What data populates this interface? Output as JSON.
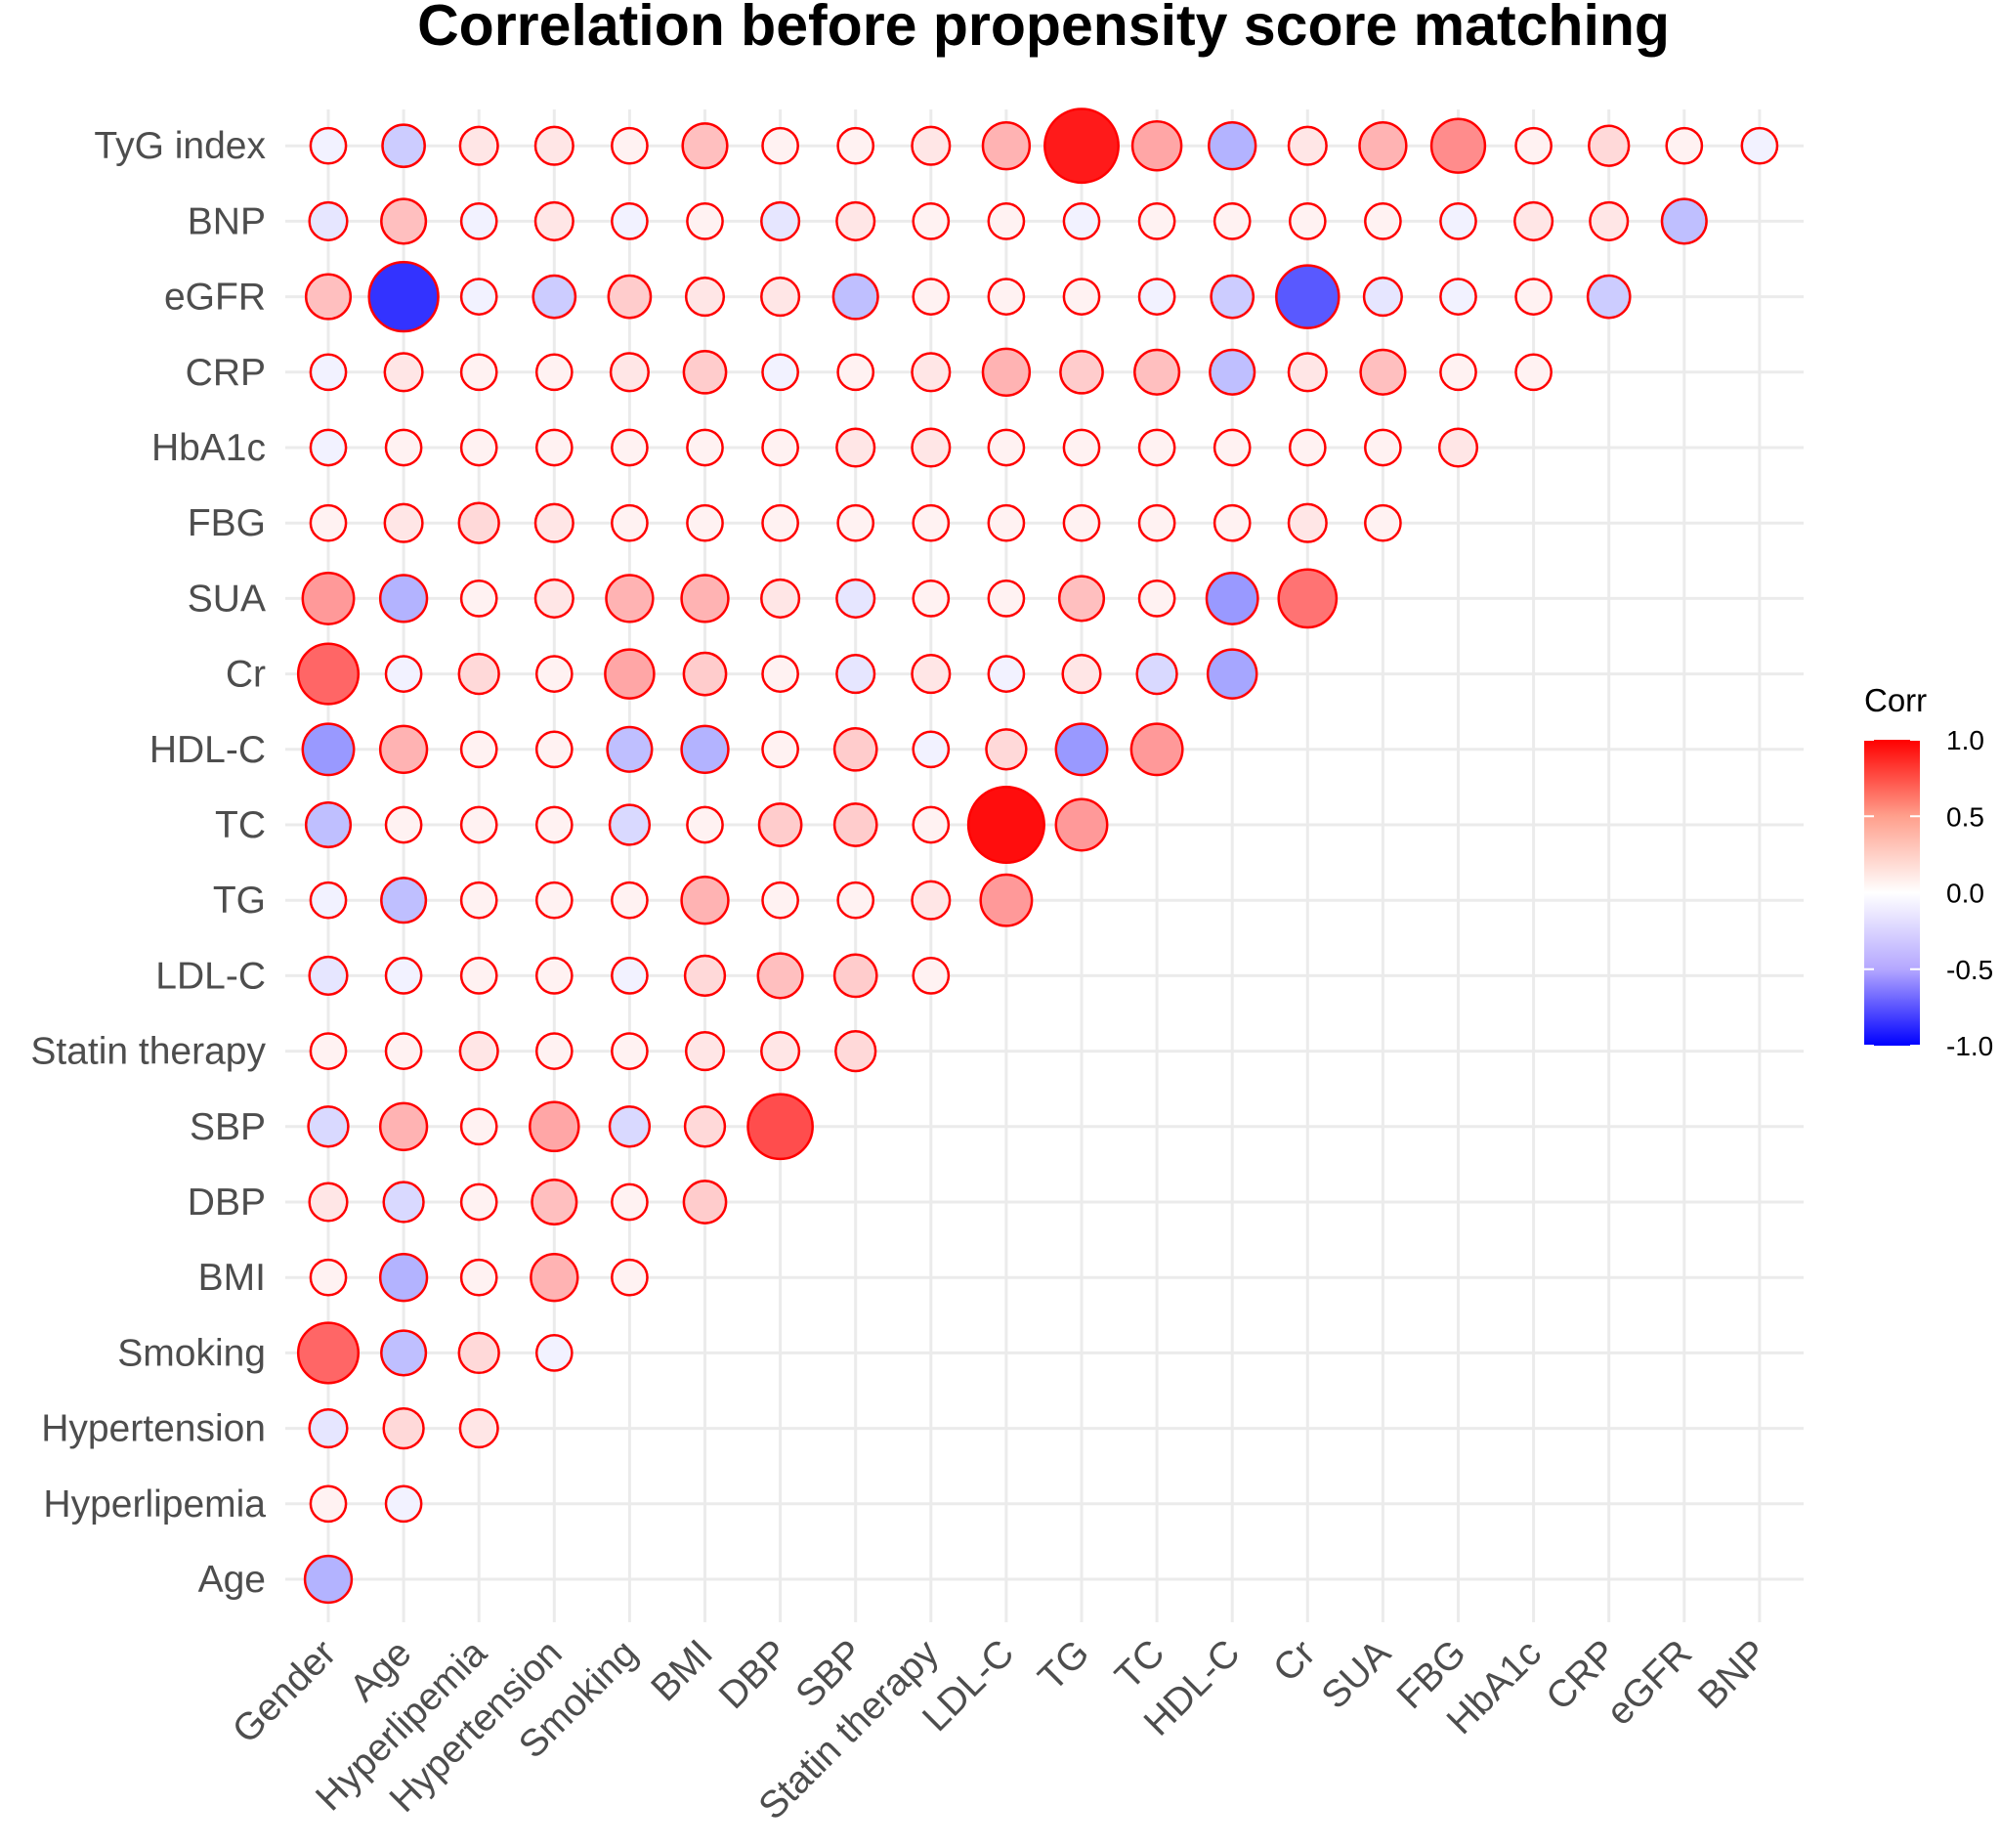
{
  "chart_data": {
    "type": "heatmap",
    "subtype": "correlation-circles",
    "title": "Correlation before propensity score matching",
    "x_labels": [
      "Gender",
      "Age",
      "Hyperlipemia",
      "Hypertension",
      "Smoking",
      "BMI",
      "DBP",
      "SBP",
      "Statin therapy",
      "LDL-C",
      "TG",
      "TC",
      "HDL-C",
      "Cr",
      "SUA",
      "FBG",
      "HbA1c",
      "CRP",
      "eGFR",
      "BNP"
    ],
    "y_labels": [
      "Age",
      "Hyperlipemia",
      "Hypertension",
      "Smoking",
      "BMI",
      "DBP",
      "SBP",
      "Statin therapy",
      "LDL-C",
      "TG",
      "TC",
      "HDL-C",
      "Cr",
      "SUA",
      "FBG",
      "HbA1c",
      "CRP",
      "eGFR",
      "BNP",
      "TyG index"
    ],
    "values": [
      [
        -0.3
      ],
      [
        0.05,
        -0.05
      ],
      [
        -0.1,
        0.15,
        0.1
      ],
      [
        0.6,
        -0.25,
        0.15,
        -0.05
      ],
      [
        0.05,
        -0.3,
        0.05,
        0.3,
        0.05
      ],
      [
        0.1,
        -0.15,
        0.05,
        0.25,
        0.05,
        0.2
      ],
      [
        -0.15,
        0.3,
        0.05,
        0.35,
        -0.15,
        0.15,
        0.7
      ],
      [
        0.05,
        0.05,
        0.1,
        0.05,
        0.05,
        0.1,
        0.1,
        0.15
      ],
      [
        -0.1,
        -0.05,
        0.05,
        0.05,
        -0.05,
        0.15,
        0.25,
        0.2,
        0.05
      ],
      [
        -0.05,
        -0.25,
        0.05,
        0.05,
        0.05,
        0.3,
        0.05,
        0.05,
        0.1,
        0.4
      ],
      [
        -0.25,
        0.05,
        0.05,
        0.05,
        -0.15,
        0.05,
        0.2,
        0.2,
        0.05,
        0.95,
        0.4
      ],
      [
        -0.4,
        0.3,
        0.05,
        0.05,
        -0.25,
        -0.3,
        0.05,
        0.2,
        -0.05,
        0.15,
        -0.4,
        0.4
      ],
      [
        0.6,
        -0.05,
        0.15,
        0.05,
        0.35,
        0.2,
        0.05,
        -0.1,
        0.1,
        -0.05,
        0.1,
        -0.15,
        -0.35
      ],
      [
        0.4,
        -0.3,
        0.05,
        0.1,
        0.3,
        0.3,
        0.1,
        -0.1,
        0.05,
        0.05,
        0.25,
        0.05,
        -0.4,
        0.55
      ],
      [
        0.05,
        0.1,
        0.15,
        0.1,
        0.05,
        0.05,
        0.05,
        0.05,
        0.05,
        0.05,
        0.05,
        0.05,
        0.05,
        0.1,
        0.05
      ],
      [
        -0.05,
        0.05,
        0.05,
        0.05,
        0.05,
        0.05,
        0.05,
        0.1,
        0.1,
        0.05,
        0.05,
        0.05,
        0.05,
        0.05,
        0.05,
        0.1
      ],
      [
        -0.05,
        0.1,
        0.05,
        0.05,
        0.1,
        0.2,
        -0.05,
        0.05,
        0.1,
        0.3,
        0.2,
        0.25,
        -0.25,
        0.1,
        0.25,
        0.05,
        0.05
      ],
      [
        0.25,
        -0.8,
        -0.05,
        -0.2,
        0.2,
        0.1,
        0.1,
        -0.25,
        0.05,
        0.05,
        0.05,
        -0.05,
        -0.2,
        -0.65,
        -0.1,
        -0.05,
        0.05,
        -0.2
      ],
      [
        -0.1,
        0.25,
        -0.05,
        0.1,
        -0.05,
        0.05,
        -0.1,
        0.1,
        0.05,
        0.05,
        -0.05,
        0.05,
        0.05,
        0.05,
        0.05,
        -0.05,
        0.1,
        0.1,
        -0.25
      ],
      [
        -0.05,
        -0.2,
        0.1,
        0.1,
        0.05,
        0.25,
        0.05,
        0.05,
        0.1,
        0.3,
        0.9,
        0.35,
        -0.3,
        0.1,
        0.3,
        0.45,
        0.05,
        0.15,
        0.05,
        -0.05
      ]
    ],
    "legend": {
      "title": "Corr",
      "ticks": [
        "1.0",
        "0.5",
        "0.0",
        "-0.5",
        "-1.0"
      ],
      "tick_values": [
        1.0,
        0.5,
        0.0,
        -0.5,
        -1.0
      ],
      "range": [
        -1.0,
        1.0
      ],
      "placement": "right"
    },
    "colors": {
      "high": "#ff0000",
      "mid": "#ffffff",
      "low": "#0000ff",
      "outline": "#ff0000",
      "grid": "#ebebeb"
    }
  }
}
